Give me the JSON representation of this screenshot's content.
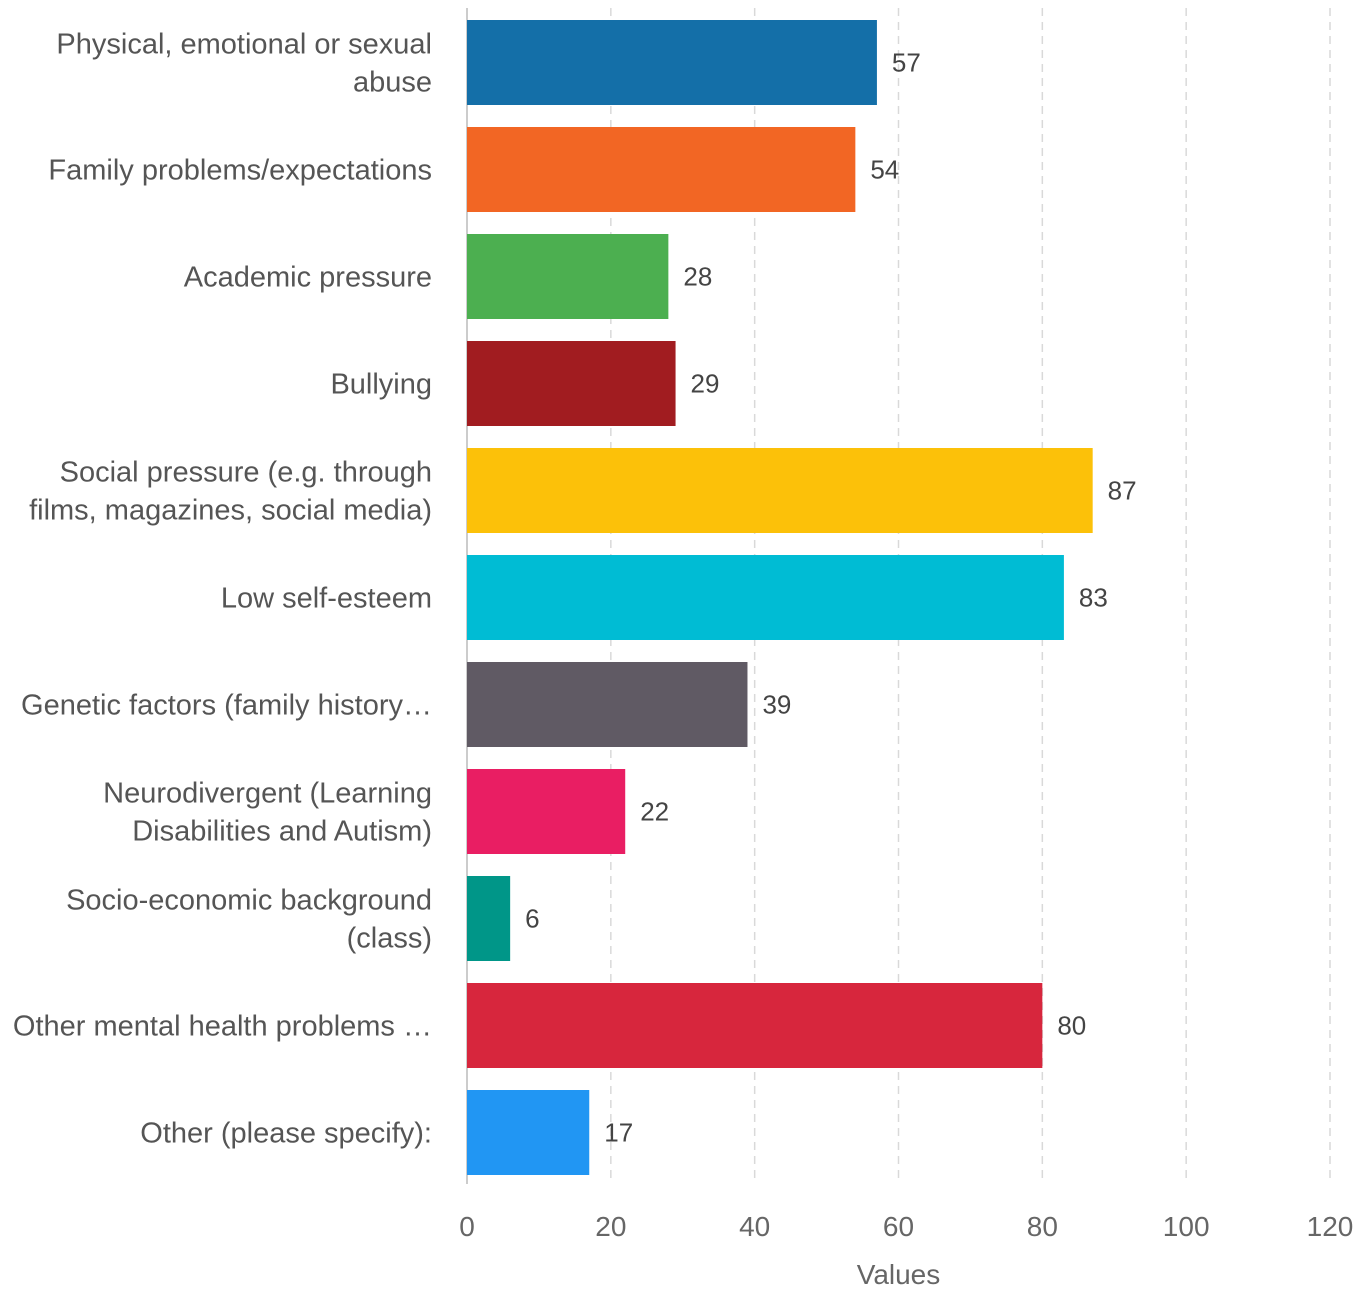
{
  "chart_data": {
    "type": "bar",
    "orientation": "horizontal",
    "categories": [
      "Physical, emotional or sexual abuse",
      "Family problems/expectations",
      "Academic pressure",
      "Bullying",
      "Social pressure (e.g. through films, magazines, social media)",
      "Low self-esteem",
      "Genetic factors (family history…",
      "Neurodivergent (Learning Disabilities and Autism)",
      "Socio-economic background (class)",
      "Other mental health problems …",
      "Other (please specify):"
    ],
    "category_lines": [
      [
        "Physical, emotional or sexual",
        "abuse"
      ],
      [
        "Family problems/expectations"
      ],
      [
        "Academic pressure"
      ],
      [
        "Bullying"
      ],
      [
        "Social pressure (e.g. through",
        "films, magazines, social media)"
      ],
      [
        "Low self-esteem"
      ],
      [
        "Genetic factors (family history…"
      ],
      [
        "Neurodivergent (Learning",
        "Disabilities and Autism)"
      ],
      [
        "Socio-economic background",
        "(class)"
      ],
      [
        "Other mental health problems …"
      ],
      [
        "Other (please specify):"
      ]
    ],
    "values": [
      57,
      54,
      28,
      29,
      87,
      83,
      39,
      22,
      6,
      80,
      17
    ],
    "colors": [
      "#146fa8",
      "#f26624",
      "#4caf50",
      "#a11c20",
      "#fcc109",
      "#00bcd4",
      "#605a64",
      "#e91e63",
      "#009688",
      "#d7263d",
      "#2196f3"
    ],
    "xlabel": "Values",
    "ylabel": "",
    "title": "",
    "xlim": [
      0,
      120
    ],
    "xticks": [
      0,
      20,
      40,
      60,
      80,
      100,
      120
    ],
    "grid": true
  }
}
